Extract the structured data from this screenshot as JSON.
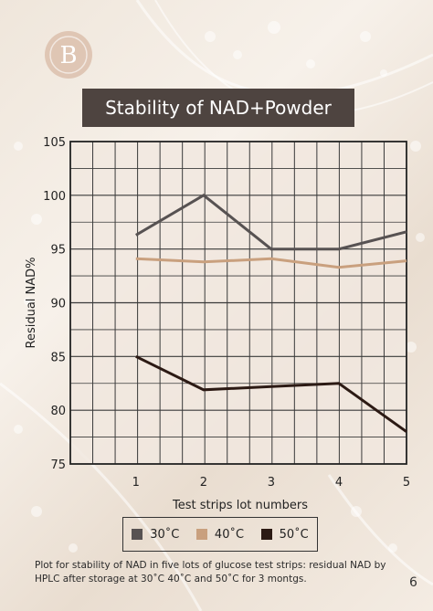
{
  "page": {
    "page_number": "6"
  },
  "logo": {
    "text": "B"
  },
  "caption": "Plot for stability of NAD in five lots of glucose test strips: residual NAD by HPLC after storage at 30˚C 40˚C and 50˚C for 3 montgs.",
  "chart_data": {
    "type": "line",
    "title": "Stability of NAD+Powder",
    "xlabel": "Test strips lot numbers",
    "ylabel": "Residual NAD%",
    "categories": [
      "1",
      "2",
      "3",
      "4",
      "5"
    ],
    "x": [
      1,
      2,
      3,
      4,
      5
    ],
    "xlim": [
      0.03,
      5
    ],
    "ylim": [
      75,
      105
    ],
    "yticks": [
      75,
      80,
      85,
      90,
      95,
      100,
      105
    ],
    "grid": true,
    "legend_position": "bottom",
    "series": [
      {
        "name": "30˚C",
        "values": [
          96.3,
          100,
          95,
          95,
          96.6
        ],
        "color": "#575252"
      },
      {
        "name": "40˚C",
        "values": [
          94.1,
          93.8,
          94.1,
          93.3,
          93.9
        ],
        "color": "#c9a07e"
      },
      {
        "name": "50˚C",
        "values": [
          85,
          81.9,
          82.2,
          82.5,
          78
        ],
        "color": "#2c1a14"
      }
    ]
  }
}
